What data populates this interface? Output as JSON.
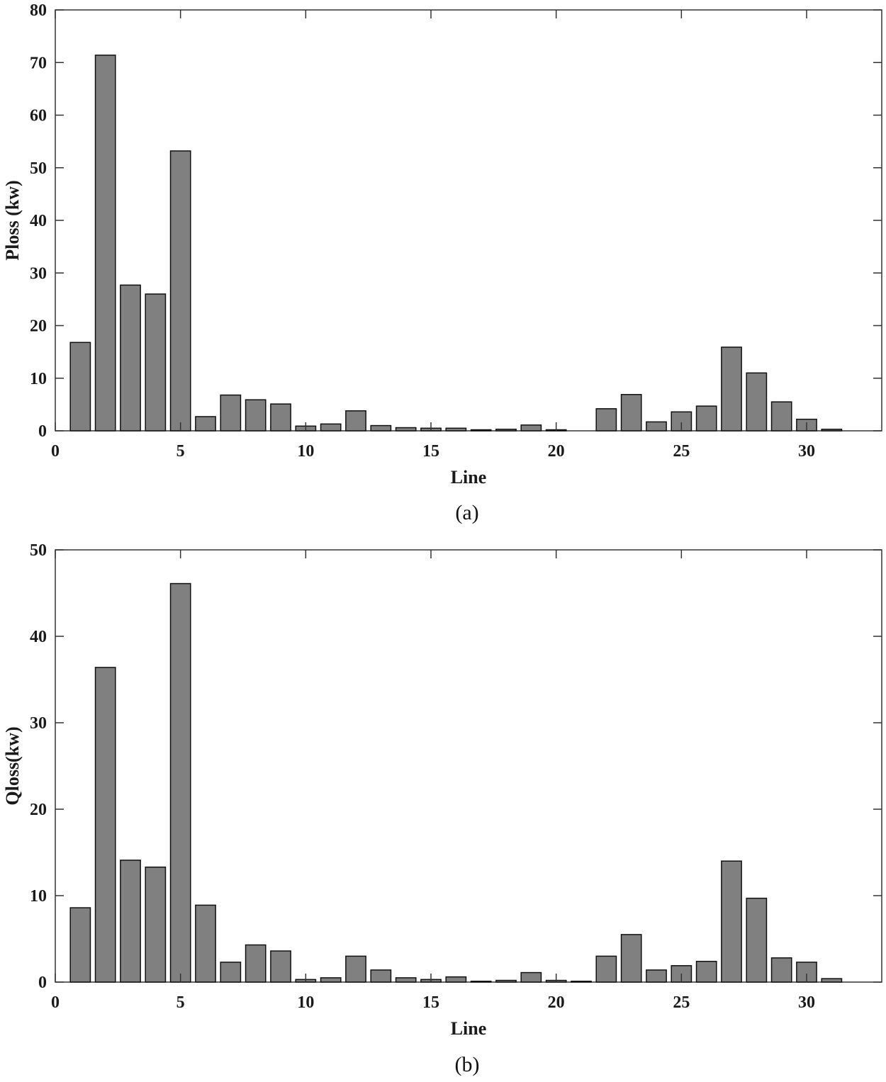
{
  "chart_data": [
    {
      "type": "bar",
      "panel": "a",
      "caption": "(a)",
      "xlabel": "Line",
      "ylabel": "Ploss (kw)",
      "xlim": [
        0,
        33
      ],
      "ylim": [
        0,
        80
      ],
      "xticks": [
        0,
        5,
        10,
        15,
        20,
        25,
        30
      ],
      "yticks": [
        0,
        10,
        20,
        30,
        40,
        50,
        60,
        70,
        80
      ],
      "categories": [
        1,
        2,
        3,
        4,
        5,
        6,
        7,
        8,
        9,
        10,
        11,
        12,
        13,
        14,
        15,
        16,
        17,
        18,
        19,
        20,
        21,
        22,
        23,
        24,
        25,
        26,
        27,
        28,
        29,
        30,
        31
      ],
      "values": [
        16.8,
        71.4,
        27.7,
        26.0,
        53.2,
        2.7,
        6.8,
        5.9,
        5.1,
        0.9,
        1.3,
        3.8,
        1.0,
        0.6,
        0.5,
        0.5,
        0.2,
        0.3,
        1.1,
        0.2,
        0.0,
        4.2,
        6.9,
        1.7,
        3.6,
        4.7,
        15.9,
        11.0,
        5.5,
        2.2,
        0.3
      ],
      "colors": {
        "bar": "#808080",
        "edge": "#111111"
      }
    },
    {
      "type": "bar",
      "panel": "b",
      "caption": "(b)",
      "xlabel": "Line",
      "ylabel": "Qloss(kw)",
      "xlim": [
        0,
        33
      ],
      "ylim": [
        0,
        50
      ],
      "xticks": [
        0,
        5,
        10,
        15,
        20,
        25,
        30
      ],
      "yticks": [
        0,
        10,
        20,
        30,
        40,
        50
      ],
      "categories": [
        1,
        2,
        3,
        4,
        5,
        6,
        7,
        8,
        9,
        10,
        11,
        12,
        13,
        14,
        15,
        16,
        17,
        18,
        19,
        20,
        21,
        22,
        23,
        24,
        25,
        26,
        27,
        28,
        29,
        30,
        31
      ],
      "values": [
        8.6,
        36.4,
        14.1,
        13.3,
        46.1,
        8.9,
        2.3,
        4.3,
        3.6,
        0.3,
        0.5,
        3.0,
        1.4,
        0.5,
        0.3,
        0.6,
        0.1,
        0.2,
        1.1,
        0.2,
        0.1,
        3.0,
        5.5,
        1.4,
        1.9,
        2.4,
        14.0,
        9.7,
        2.8,
        2.3,
        0.4
      ],
      "colors": {
        "bar": "#808080",
        "edge": "#111111"
      }
    }
  ]
}
